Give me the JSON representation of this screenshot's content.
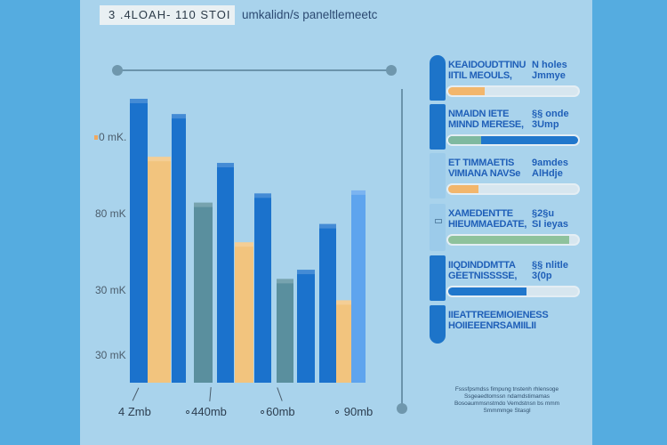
{
  "header": {
    "title": "3 .4LOAH- 110 STOI",
    "subtitle": "umkalidn/s paneltlemeetc"
  },
  "colors": {
    "blue": "#1b72cc",
    "yellow": "#f2c47e",
    "teal": "#5a8f9e",
    "light_blue": "#5ea4ee",
    "side": "#55ace0",
    "background": "#a9d3ec"
  },
  "chart_data": {
    "type": "bar",
    "title": "",
    "xlabel": "",
    "ylabel": "",
    "y_tick_labels": [
      "0 mK.",
      "80 mK",
      "30 mK",
      "30 mK"
    ],
    "x_tick_labels": [
      "4 Zmb",
      "∘440mb",
      "∘60mb",
      "∘ 90mb"
    ],
    "ylim": [
      0,
      100
    ],
    "bars": [
      {
        "group": "4 Zmb",
        "series": "blue",
        "value": 93
      },
      {
        "group": "4 Zmb",
        "series": "yellow",
        "value": 74
      },
      {
        "group": "4 Zmb",
        "series": "blue",
        "value": 88
      },
      {
        "group": "440mb",
        "series": "teal",
        "value": 59
      },
      {
        "group": "440mb",
        "series": "blue",
        "value": 72
      },
      {
        "group": "440mb",
        "series": "yellow",
        "value": 46
      },
      {
        "group": "60mb",
        "series": "blue",
        "value": 62
      },
      {
        "group": "60mb",
        "series": "teal",
        "value": 34
      },
      {
        "group": "60mb",
        "series": "blue",
        "value": 37
      },
      {
        "group": "90mb",
        "series": "blue",
        "value": 52
      },
      {
        "group": "90mb",
        "series": "yellow",
        "value": 27
      },
      {
        "group": "90mb",
        "series": "light_blue",
        "value": 63
      }
    ],
    "grid": false,
    "legend": "none"
  },
  "panel": {
    "rows": [
      {
        "line1": "KEAIDOUDTTINU",
        "line2": "IITIL MEOULS,",
        "value1": "N holes",
        "value2": "Jmmye",
        "progress": 0.28,
        "progress_color": "#f2b66c",
        "rest_color": "#d7e6ef",
        "pill": "dark"
      },
      {
        "line1": "NMAIDN IETE",
        "line2": "MINND MERESE,",
        "value1": "§§ onde",
        "value2": "3Ump",
        "progress": 0.25,
        "progress_color": "#7fb9a0",
        "rest_color": "#2077cc",
        "pill": "dark"
      },
      {
        "line1": "ET TIMMAETIS",
        "line2": "VIMIANA NAVSe",
        "value1": "9amdes",
        "value2": "AlHdje",
        "progress": 0.23,
        "progress_color": "#f2b66c",
        "rest_color": "#d7e6ef",
        "pill": "light"
      },
      {
        "line1": "XAMEDENTTE",
        "line2": "HIEUMMAEDATE,",
        "value1": "§2§u",
        "value2": "SI ieyas",
        "progress": 0.93,
        "progress_color": "#8ec29c",
        "rest_color": "#d7e6ef",
        "pill": "light"
      },
      {
        "line1": "IIQDINDDMTTA",
        "line2": "GEETNISSSSE,",
        "value1": "§§ nlitle",
        "value2": "3(0p",
        "progress": 0.6,
        "progress_color": "#2077cc",
        "rest_color": "#d7e6ef",
        "pill": "dark"
      },
      {
        "line1": "IIEATTREEMIOIENESS",
        "line2": "HOIIEEENRSAMIILII",
        "value1": "",
        "value2": "",
        "progress": null,
        "progress_color": "",
        "rest_color": "",
        "pill": "dark"
      }
    ],
    "note": "Fsssfpsmdss fimpung tnstenh rhlensoge Ssgeaedtomssn ndamdstimamas Bosoaummsnstmdo Vemdstnsn bs mmm Smmmmge Stasgl"
  }
}
